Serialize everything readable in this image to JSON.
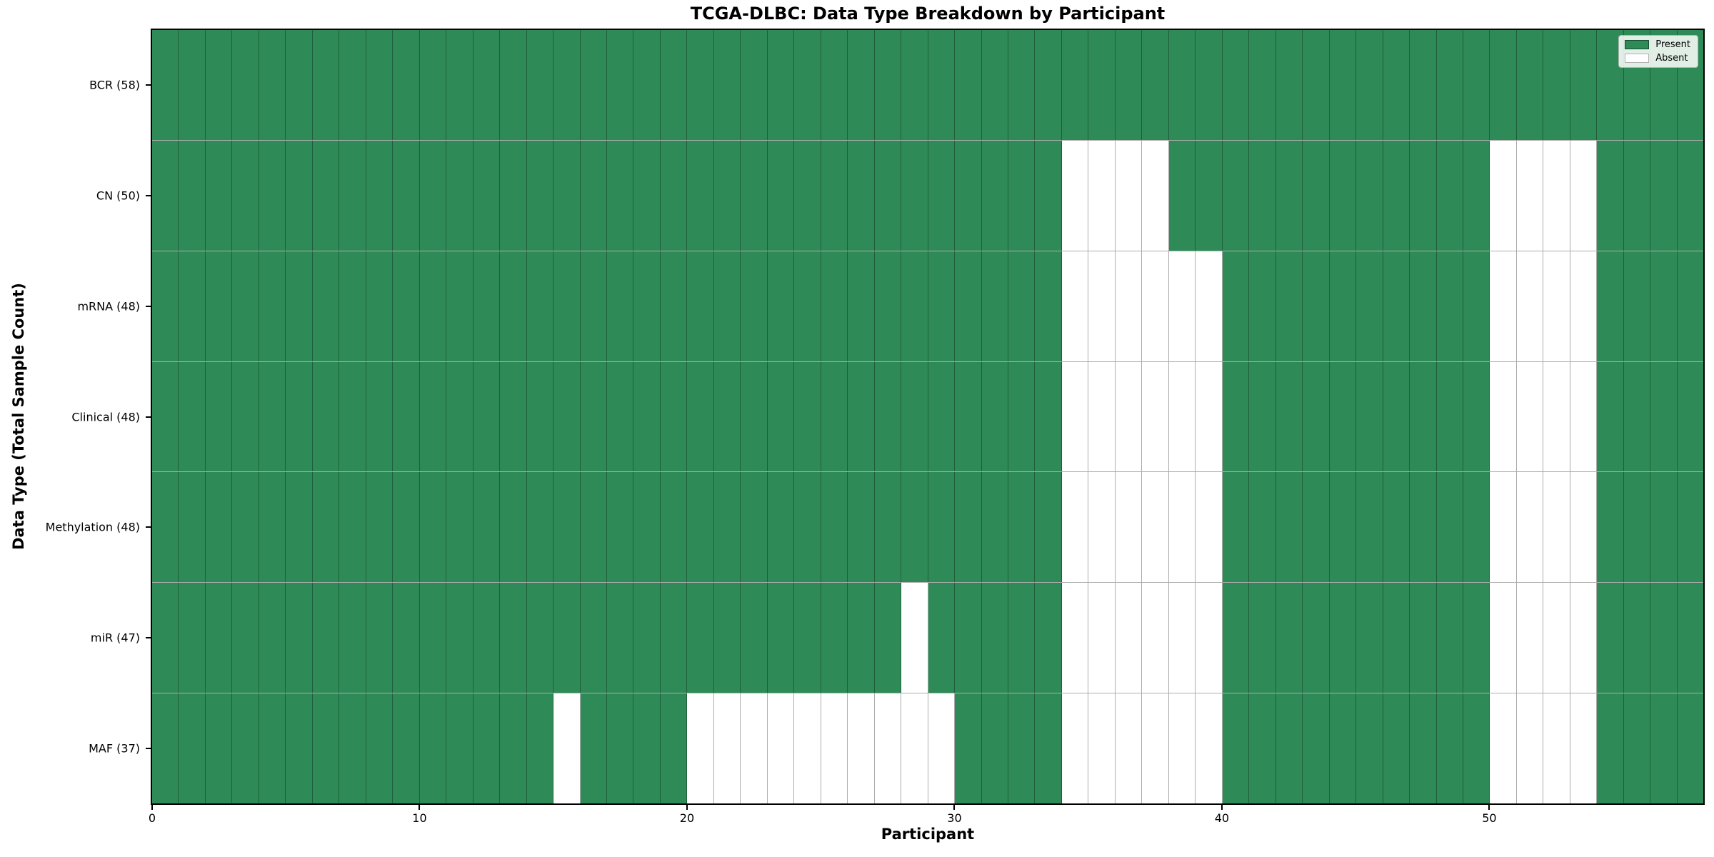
{
  "colors": {
    "present": "#2e8b57",
    "absent": "#ffffff",
    "cell_edge": "rgba(0,0,0,0.32)",
    "spine": "#000000",
    "text": "#000000",
    "legend_bg": "rgba(255,255,255,0.85)",
    "legend_border": "#b3b3b3"
  },
  "chart_data": {
    "type": "heatmap",
    "title": "TCGA-DLBC: Data Type Breakdown by Participant",
    "xlabel": "Participant",
    "ylabel": "Data Type (Total Sample Count)",
    "x_range": [
      0,
      58
    ],
    "x_ticks": [
      "0",
      "10",
      "20",
      "30",
      "40",
      "50"
    ],
    "n_participants": 58,
    "grid": "cell edges on",
    "legend": [
      "Present",
      "Absent"
    ],
    "legend_position": "upper right",
    "rows": [
      {
        "label": "BCR (58)",
        "data_type": "BCR",
        "present_count": 58,
        "absent_participants": []
      },
      {
        "label": "CN (50)",
        "data_type": "CN",
        "present_count": 50,
        "absent_participants": [
          34,
          35,
          36,
          37,
          50,
          51,
          52,
          53
        ]
      },
      {
        "label": "mRNA (48)",
        "data_type": "mRNA",
        "present_count": 48,
        "absent_participants": [
          34,
          35,
          36,
          37,
          38,
          39,
          50,
          51,
          52,
          53
        ]
      },
      {
        "label": "Clinical (48)",
        "data_type": "Clinical",
        "present_count": 48,
        "absent_participants": [
          34,
          35,
          36,
          37,
          38,
          39,
          50,
          51,
          52,
          53
        ]
      },
      {
        "label": "Methylation (48)",
        "data_type": "Methylation",
        "present_count": 48,
        "absent_participants": [
          34,
          35,
          36,
          37,
          38,
          39,
          50,
          51,
          52,
          53
        ]
      },
      {
        "label": "miR (47)",
        "data_type": "miR",
        "present_count": 47,
        "absent_participants": [
          28,
          34,
          35,
          36,
          37,
          38,
          39,
          50,
          51,
          52,
          53
        ]
      },
      {
        "label": "MAF (37)",
        "data_type": "MAF",
        "present_count": 37,
        "absent_participants": [
          15,
          20,
          21,
          22,
          23,
          24,
          25,
          26,
          27,
          28,
          29,
          34,
          35,
          36,
          37,
          38,
          39,
          50,
          51,
          52,
          53
        ]
      }
    ]
  }
}
